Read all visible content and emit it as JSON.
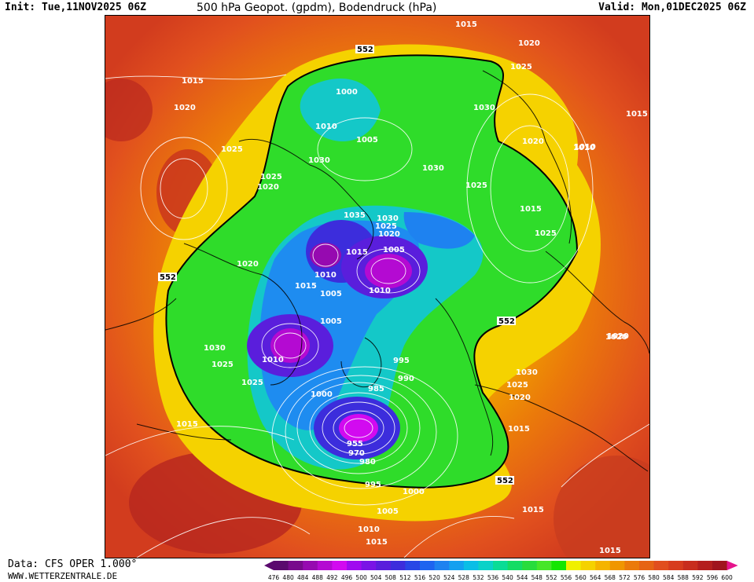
{
  "header": {
    "init": "Init: Tue,11NOV2025 06Z",
    "title": "500 hPa Geopot. (gpdm), Bodendruck (hPa)",
    "valid": "Valid: Mon,01DEC2025 06Z"
  },
  "footer": {
    "data_source": "Data: CFS OPER 1.000°",
    "website": "WWW.WETTERZENTRALE.DE"
  },
  "colorbar": {
    "ticks": [
      "476",
      "480",
      "484",
      "488",
      "492",
      "496",
      "500",
      "504",
      "508",
      "512",
      "516",
      "520",
      "524",
      "528",
      "532",
      "536",
      "540",
      "544",
      "548",
      "552",
      "556",
      "560",
      "564",
      "568",
      "572",
      "576",
      "580",
      "584",
      "588",
      "592",
      "596",
      "600"
    ],
    "colors": [
      "#5a0a6e",
      "#780a8c",
      "#960ab0",
      "#b40ad2",
      "#d20af0",
      "#a00af0",
      "#7a14e6",
      "#5a1edc",
      "#3c2ddc",
      "#2846e6",
      "#1e64f0",
      "#1e82f0",
      "#14a0f0",
      "#0abee6",
      "#0ad2c8",
      "#0adc96",
      "#14dc64",
      "#28dc3c",
      "#46e628",
      "#14e600",
      "#f0f000",
      "#f5d200",
      "#f5b400",
      "#f09600",
      "#eb7a0a",
      "#e66414",
      "#e14e1e",
      "#d73c1e",
      "#c82d1e",
      "#b41e1e",
      "#a0141e",
      "#e6148c"
    ]
  },
  "map": {
    "contour_552_label": "552",
    "pressure_labels": [
      {
        "text": "1015"
      },
      {
        "text": "1020"
      },
      {
        "text": "1015"
      },
      {
        "text": "1020"
      },
      {
        "text": "1025"
      },
      {
        "text": "1000"
      },
      {
        "text": "1010"
      },
      {
        "text": "1005"
      },
      {
        "text": "1030"
      },
      {
        "text": "1030"
      },
      {
        "text": "1025"
      },
      {
        "text": "1020"
      },
      {
        "text": "1030"
      },
      {
        "text": "1025"
      },
      {
        "text": "1020"
      },
      {
        "text": "1010"
      },
      {
        "text": "1015"
      },
      {
        "text": "1015"
      },
      {
        "text": "1025"
      },
      {
        "text": "1035"
      },
      {
        "text": "1030"
      },
      {
        "text": "1025"
      },
      {
        "text": "1020"
      },
      {
        "text": "1015"
      },
      {
        "text": "1005"
      },
      {
        "text": "1010"
      },
      {
        "text": "1015"
      },
      {
        "text": "1010"
      },
      {
        "text": "1025"
      },
      {
        "text": "1020"
      },
      {
        "text": "1005"
      },
      {
        "text": "1005"
      },
      {
        "text": "995"
      },
      {
        "text": "990"
      },
      {
        "text": "1020"
      },
      {
        "text": "1030"
      },
      {
        "text": "1010"
      },
      {
        "text": "1025"
      },
      {
        "text": "1030"
      },
      {
        "text": "1025"
      },
      {
        "text": "1020"
      },
      {
        "text": "1015"
      },
      {
        "text": "1025"
      },
      {
        "text": "1000"
      },
      {
        "text": "985"
      },
      {
        "text": "955"
      },
      {
        "text": "970"
      },
      {
        "text": "980"
      },
      {
        "text": "995"
      },
      {
        "text": "1000"
      },
      {
        "text": "1005"
      },
      {
        "text": "1010"
      },
      {
        "text": "1015"
      },
      {
        "text": "1015"
      },
      {
        "text": "1015"
      },
      {
        "text": "1015"
      },
      {
        "text": "1020"
      },
      {
        "text": "1010"
      }
    ]
  }
}
